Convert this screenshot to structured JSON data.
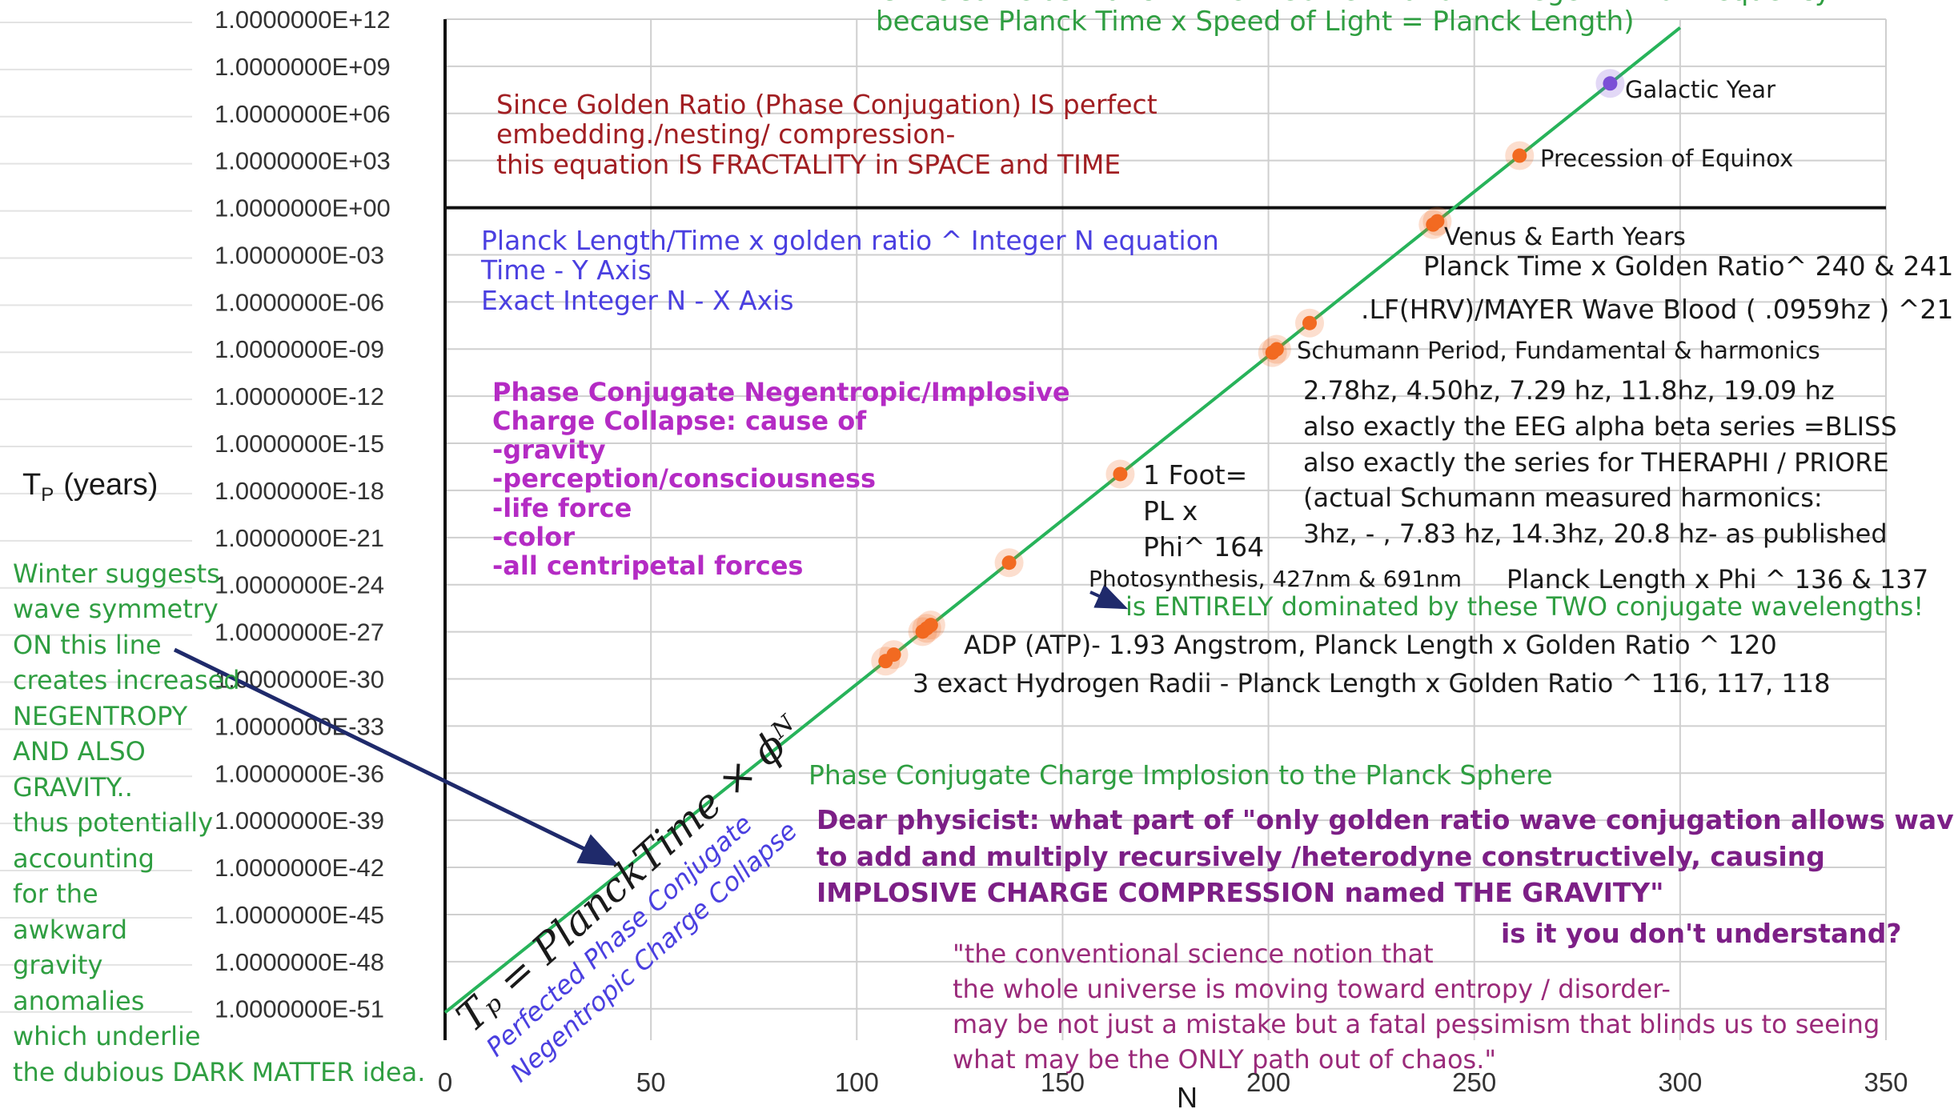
{
  "chart_data": {
    "type": "line",
    "title": "",
    "xlabel": "N",
    "ylabel_main": "T",
    "ylabel_sub": "P",
    "ylabel_unit": "(years)",
    "x_ticks": [
      "0",
      "50",
      "100",
      "150",
      "200",
      "250",
      "300",
      "350"
    ],
    "x_tick_values": [
      0,
      50,
      100,
      150,
      200,
      250,
      300,
      350
    ],
    "xlim": [
      0,
      350
    ],
    "y_scale": "log10",
    "y_exponent_range": [
      -53,
      12
    ],
    "y_ticks": [
      "1.0000000E+12",
      "1.0000000E+09",
      "1.0000000E+06",
      "1.0000000E+03",
      "1.0000000E+00",
      "1.0000000E-03",
      "1.0000000E-06",
      "1.0000000E-09",
      "1.0000000E-12",
      "1.0000000E-15",
      "1.0000000E-18",
      "1.0000000E-21",
      "1.0000000E-24",
      "1.0000000E-27",
      "1.0000000E-30",
      "1.0000000E-33",
      "1.0000000E-36",
      "1.0000000E-39",
      "1.0000000E-42",
      "1.0000000E-45",
      "1.0000000E-48",
      "1.0000000E-51"
    ],
    "y_tick_exponents": [
      12,
      9,
      6,
      3,
      0,
      -3,
      -6,
      -9,
      -12,
      -15,
      -18,
      -21,
      -24,
      -27,
      -30,
      -33,
      -36,
      -39,
      -42,
      -45,
      -48,
      -51
    ],
    "series": [
      {
        "x_range": [
          0,
          300
        ],
        "log10_y_at_x0": -51.23,
        "log10_y_step_per_N": 0.20898,
        "color": "#27b35a"
      }
    ],
    "highlight_points": [
      {
        "x": 107,
        "color": "#f26a21"
      },
      {
        "x": 109,
        "color": "#f26a21"
      },
      {
        "x": 116,
        "color": "#f26a21"
      },
      {
        "x": 117,
        "color": "#f26a21"
      },
      {
        "x": 118,
        "color": "#f26a21"
      },
      {
        "x": 137,
        "color": "#f26a21"
      },
      {
        "x": 164,
        "color": "#f26a21"
      },
      {
        "x": 201,
        "color": "#f26a21"
      },
      {
        "x": 202,
        "color": "#f26a21"
      },
      {
        "x": 210,
        "color": "#f26a21"
      },
      {
        "x": 240,
        "color": "#f26a21"
      },
      {
        "x": 241,
        "color": "#f26a21"
      },
      {
        "x": 261,
        "color": "#f26a21"
      },
      {
        "x": 283,
        "color": "#7b4fd6"
      }
    ],
    "colors": {
      "grid": "#cfcfcf",
      "axis": "#111111",
      "tick_label": "#333333",
      "arrow": "#1f2a6b"
    }
  },
  "annotations": {
    "top_line_1": "is the same as Planck Time x Golden Ratio ^ Integer N - for frequency",
    "top_line_2": "because  Planck Time x Speed of Light = Planck Length)",
    "golden": [
      "Since Golden Ratio (Phase Conjugation) IS perfect",
      "embedding./nesting/ compression-",
      "this equation IS FRACTALITY in SPACE and TIME"
    ],
    "equation_info": [
      "Planck Length/Time x golden ratio ^ Integer N equation",
      "Time  -  Y  Axis",
      "Exact Integer N - X Axis"
    ],
    "phase": [
      "Phase Conjugate Negentropic/Implosive",
      "Charge Collapse:  cause of",
      "-gravity",
      "-perception/consciousness",
      "-life force",
      "-color",
      "-all centripetal forces"
    ],
    "winter": [
      "Winter suggests",
      "wave symmetry",
      "ON this line",
      "creates increased",
      "NEGENTROPY",
      "AND ALSO",
      "GRAVITY..",
      "thus potentially",
      "accounting",
      "for the",
      "awkward",
      "gravity",
      "anomalies",
      "which underlie",
      "the dubious DARK MATTER idea."
    ],
    "galactic_year": "Galactic Year",
    "precession": "Precession of Equinox",
    "venus_earth": "Venus & Earth Years",
    "planck_240": "Planck Time x Golden Ratio^ 240 & 241",
    "lf_hrv": ".LF(HRV)/MAYER Wave Blood ( .0959hz ) ^210",
    "schumann": "Schumann Period, Fundamental & harmonics",
    "schumann_details": [
      "2.78hz, 4.50hz, 7.29 hz, 11.8hz, 19.09 hz",
      "also exactly the EEG alpha beta series =BLISS",
      "also exactly the series for THERAPHI / PRIORE",
      "(actual Schumann measured harmonics:",
      "3hz,  - ,  7.83 hz, 14.3hz, 20.8 hz- as published"
    ],
    "one_foot": [
      "1 Foot=",
      "PL x",
      "Phi^ 164"
    ],
    "photosynthesis": "Photosynthesis, 427nm & 691nm",
    "planck_136": "Planck Length x Phi ^ 136 & 137",
    "dominated": "is ENTIRELY dominated by these TWO conjugate wavelengths!",
    "adp": "ADP (ATP)- 1.93 Angstrom, Planck Length x Golden Ratio ^ 120",
    "hydrogen": "3 exact Hydrogen Radii - Planck Length x Golden Ratio ^ 116, 117, 118",
    "implosion": "Phase Conjugate Charge Implosion to the Planck Sphere",
    "physicist": [
      "Dear physicist: what part of \"only golden ratio wave conjugation allows waves",
      "to add and multiply recursively /heterodyne constructively,  causing",
      "IMPLOSIVE CHARGE COMPRESSION  named THE GRAVITY\""
    ],
    "understand": "is it you don't understand?",
    "quote": [
      "\"the conventional science notion that",
      " the whole universe is moving toward entropy / disorder-",
      "may be not just a mistake but a fatal pessimism that blinds us to seeing",
      "what may be the ONLY path out of chaos.\""
    ],
    "formula": "Tₚ = PlanckTime × ϕᴺ",
    "collapse_1": "Perfected Phase Conjugate",
    "collapse_2": "Negentropic Charge Collapse"
  }
}
